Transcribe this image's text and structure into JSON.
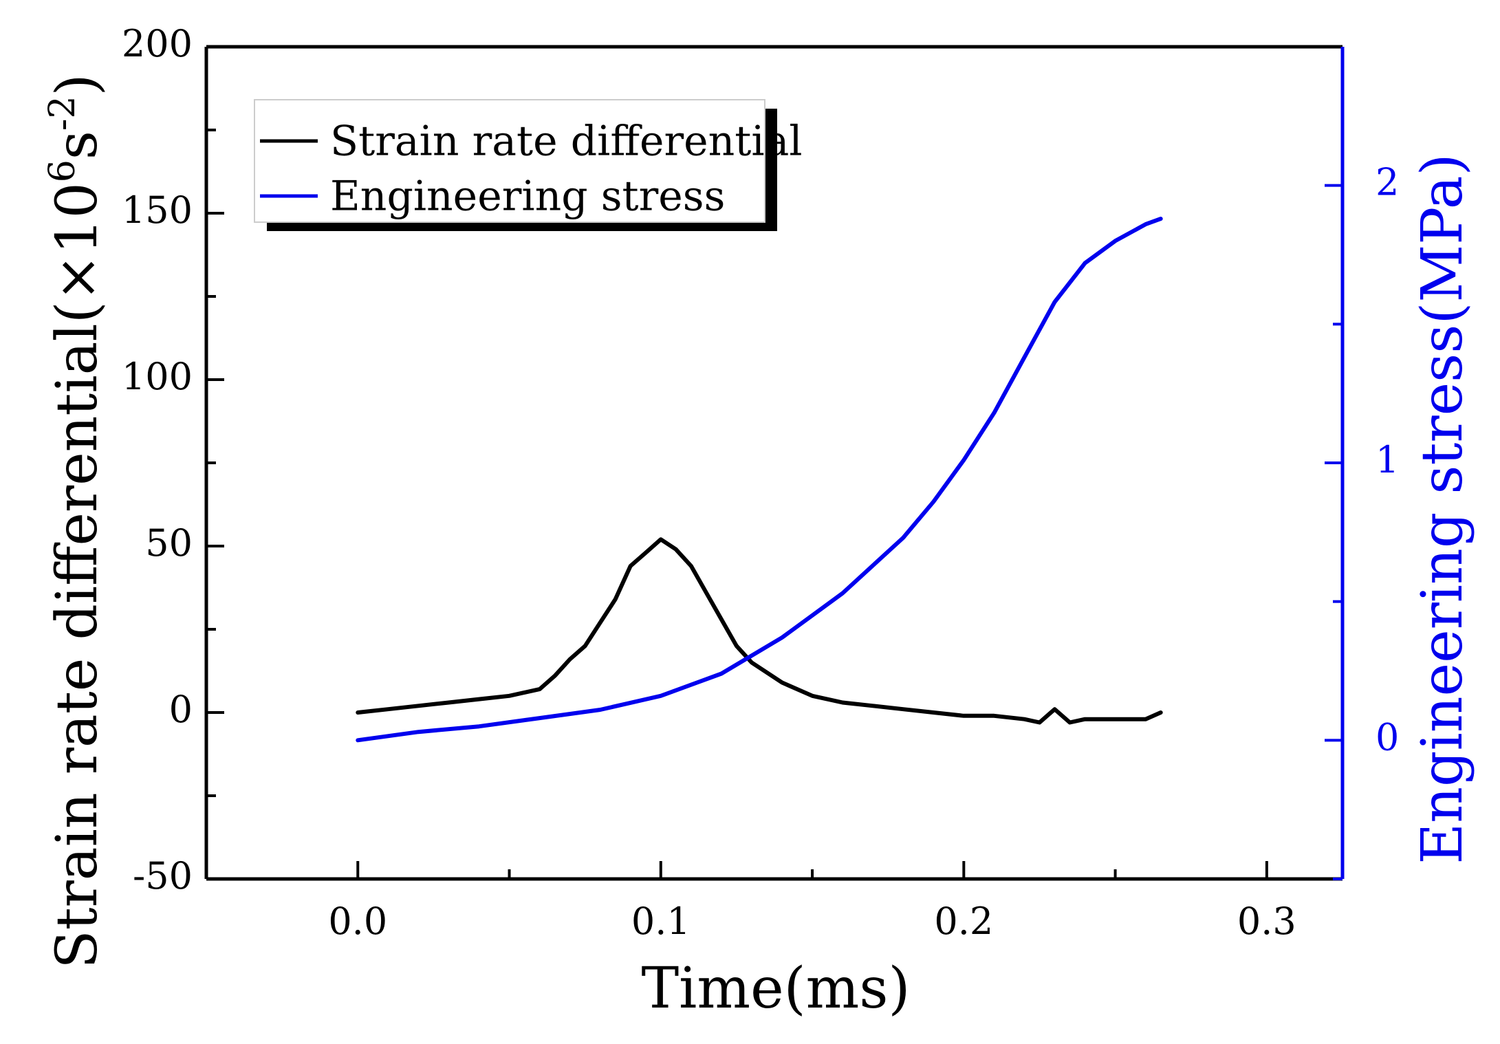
{
  "chart_data": {
    "type": "line",
    "title": "",
    "xlabel": "Time(ms)",
    "ylabel_left_text": "Strain rate differential(×10",
    "ylabel_left_sup1": "6",
    "ylabel_left_mid": "s",
    "ylabel_left_sup2": "-2",
    "ylabel_left_close": ")",
    "ylabel_right": "Engineering stress(MPa)",
    "xlim": [
      -0.05,
      0.325
    ],
    "ylim_left": [
      -50,
      200
    ],
    "ylim_right": [
      -0.5,
      2.5
    ],
    "x_ticks": [
      "0.0",
      "0.1",
      "0.2",
      "0.3"
    ],
    "y_left_ticks": [
      "-50",
      "0",
      "50",
      "100",
      "150",
      "200"
    ],
    "y_right_ticks": [
      "0",
      "1",
      "2"
    ],
    "grid": false,
    "legend_position": "top-left",
    "colors": {
      "left_axis": "#000000",
      "right_axis": "#0000ee"
    },
    "series": [
      {
        "name": "Strain rate differential",
        "axis": "left",
        "color": "#000000",
        "x": [
          0.0,
          0.01,
          0.02,
          0.03,
          0.04,
          0.05,
          0.06,
          0.065,
          0.07,
          0.075,
          0.08,
          0.085,
          0.09,
          0.095,
          0.1,
          0.105,
          0.11,
          0.115,
          0.12,
          0.125,
          0.13,
          0.135,
          0.14,
          0.15,
          0.16,
          0.17,
          0.18,
          0.19,
          0.2,
          0.21,
          0.22,
          0.225,
          0.23,
          0.235,
          0.24,
          0.25,
          0.26,
          0.265
        ],
        "y": [
          0,
          1,
          2,
          3,
          4,
          5,
          7,
          11,
          16,
          20,
          27,
          34,
          44,
          48,
          52,
          49,
          44,
          36,
          28,
          20,
          15,
          12,
          9,
          5,
          3,
          2,
          1,
          0,
          -1,
          -1,
          -2,
          -3,
          1,
          -3,
          -2,
          -2,
          -2,
          0
        ]
      },
      {
        "name": "Engineering stress",
        "axis": "right",
        "color": "#0000ee",
        "x": [
          0.0,
          0.02,
          0.04,
          0.06,
          0.08,
          0.1,
          0.12,
          0.14,
          0.16,
          0.18,
          0.19,
          0.2,
          0.21,
          0.22,
          0.23,
          0.24,
          0.25,
          0.26,
          0.265
        ],
        "y": [
          0.0,
          0.03,
          0.05,
          0.08,
          0.11,
          0.16,
          0.24,
          0.37,
          0.53,
          0.73,
          0.86,
          1.01,
          1.18,
          1.38,
          1.58,
          1.72,
          1.8,
          1.86,
          1.88
        ]
      }
    ]
  }
}
